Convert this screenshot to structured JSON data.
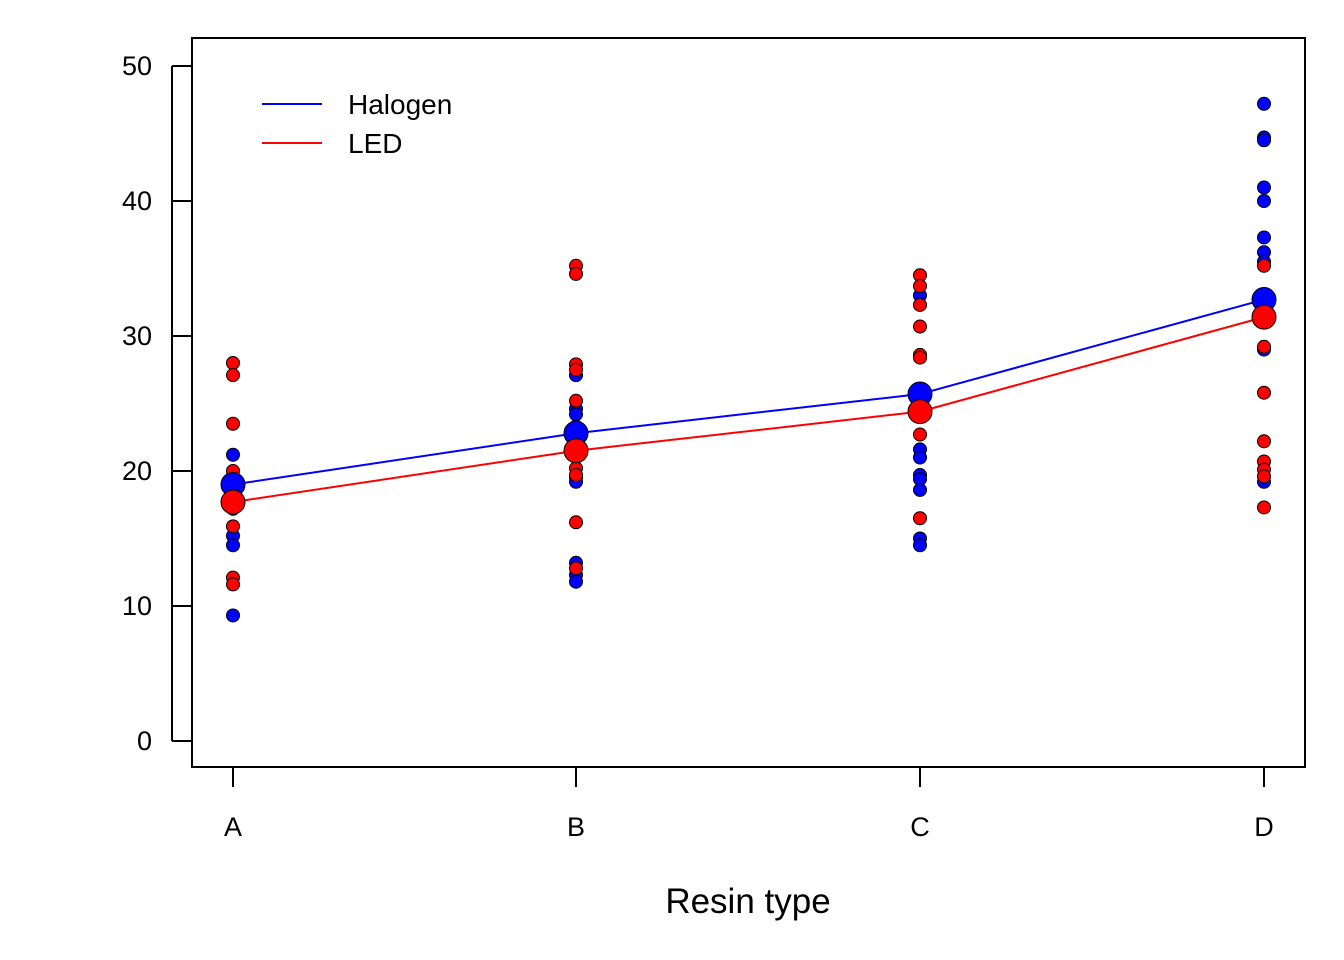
{
  "chart_data": {
    "type": "scatter",
    "title": "",
    "xlabel": "Resin type",
    "ylabel": "",
    "categories": [
      "A",
      "B",
      "C",
      "D"
    ],
    "ylim": [
      -2,
      52
    ],
    "yticks": [
      0,
      10,
      20,
      30,
      40,
      50
    ],
    "grid": false,
    "legend_position": "top-left",
    "series": [
      {
        "name": "Halogen",
        "color": "#0000ff",
        "means": [
          19.0,
          22.8,
          25.7,
          32.7
        ],
        "points": [
          [
            21.2,
            19.5,
            18.5,
            18.0,
            17.2,
            15.2,
            14.5,
            9.3
          ],
          [
            27.1,
            24.6,
            24.2,
            23.3,
            19.5,
            19.2,
            13.2,
            12.3,
            11.8
          ],
          [
            33.0,
            21.6,
            21.0,
            19.7,
            19.4,
            18.6,
            15.0,
            14.5
          ],
          [
            47.2,
            44.7,
            44.5,
            41.0,
            40.0,
            37.3,
            36.2,
            35.5,
            33.0,
            29.0,
            19.2
          ]
        ]
      },
      {
        "name": "LED",
        "color": "#ff0000",
        "means": [
          17.7,
          21.5,
          24.4,
          31.4
        ],
        "points": [
          [
            28.0,
            27.1,
            23.5,
            20.0,
            19.4,
            15.9,
            12.1,
            11.6
          ],
          [
            35.2,
            34.6,
            27.9,
            27.5,
            25.2,
            20.2,
            19.7,
            16.2,
            12.8
          ],
          [
            34.5,
            33.7,
            32.3,
            30.7,
            28.6,
            28.4,
            22.7,
            16.5
          ],
          [
            35.2,
            29.2,
            25.8,
            22.2,
            20.7,
            20.1,
            19.6,
            17.3
          ]
        ]
      }
    ]
  }
}
